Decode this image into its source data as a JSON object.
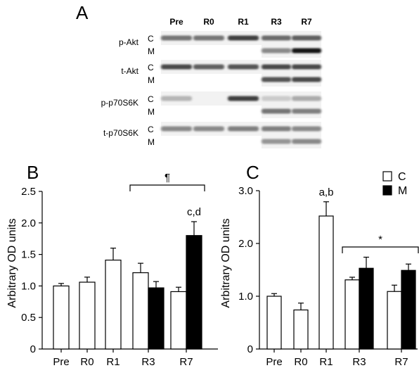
{
  "panels": {
    "a": {
      "letter": "A"
    },
    "b": {
      "letter": "B"
    },
    "c": {
      "letter": "C"
    }
  },
  "blot": {
    "columns": [
      "Pre",
      "R0",
      "R1",
      "R3",
      "R7"
    ],
    "proteins": [
      {
        "name": "p-Akt",
        "rows": [
          "C",
          "M"
        ],
        "bands": {
          "C": [
            0.55,
            0.55,
            0.8,
            0.6,
            0.65
          ],
          "M": [
            null,
            null,
            null,
            0.45,
            1.0
          ]
        }
      },
      {
        "name": "t-Akt",
        "rows": [
          "C",
          "M"
        ],
        "bands": {
          "C": [
            0.75,
            0.65,
            0.7,
            0.75,
            0.75
          ],
          "M": [
            null,
            null,
            null,
            0.7,
            0.75
          ]
        }
      },
      {
        "name": "p-p70S6K",
        "rows": [
          "C",
          "M"
        ],
        "bands": {
          "C": [
            0.25,
            0.0,
            0.8,
            0.15,
            0.3
          ],
          "M": [
            null,
            null,
            null,
            0.55,
            0.5
          ]
        }
      },
      {
        "name": "t-p70S6K",
        "rows": [
          "C",
          "M"
        ],
        "bands": {
          "C": [
            0.45,
            0.45,
            0.5,
            0.5,
            0.45
          ],
          "M": [
            null,
            null,
            null,
            0.4,
            0.45
          ]
        }
      }
    ]
  },
  "legend": {
    "items": [
      {
        "label": "C",
        "color": "#ffffff"
      },
      {
        "label": "M",
        "color": "#000000"
      }
    ],
    "placement": "top-right of panel C"
  },
  "chart_data": [
    {
      "panel": "B",
      "type": "bar",
      "ylabel": "Arbitrary OD units",
      "ylim": [
        0,
        2.5
      ],
      "yticks": [
        "0",
        "0.5",
        "1.0",
        "1.5",
        "2.0",
        "2.5"
      ],
      "categories": [
        "Pre",
        "R0",
        "R1",
        "R3",
        "R7"
      ],
      "series": [
        {
          "name": "C",
          "color": "#ffffff",
          "values": [
            1.0,
            1.06,
            1.41,
            1.21,
            0.91
          ],
          "errors": [
            0.04,
            0.08,
            0.19,
            0.15,
            0.07
          ]
        },
        {
          "name": "M",
          "color": "#000000",
          "values": [
            null,
            null,
            null,
            0.97,
            1.8
          ],
          "errors": [
            null,
            null,
            null,
            0.1,
            0.22
          ]
        }
      ],
      "annotations": [
        {
          "text": "c,d",
          "category": "R7",
          "series": "M"
        },
        {
          "text": "¶",
          "bracket": [
            "R3",
            "R7"
          ]
        }
      ],
      "grid": false
    },
    {
      "panel": "C",
      "type": "bar",
      "ylabel": "Arbitrary OD units",
      "ylim": [
        0,
        3.0
      ],
      "yticks": [
        "0",
        "1.0",
        "2.0",
        "3.0"
      ],
      "categories": [
        "Pre",
        "R0",
        "R1",
        "R3",
        "R7"
      ],
      "series": [
        {
          "name": "C",
          "color": "#ffffff",
          "values": [
            1.0,
            0.74,
            2.52,
            1.31,
            1.09
          ],
          "errors": [
            0.05,
            0.13,
            0.27,
            0.05,
            0.12
          ]
        },
        {
          "name": "M",
          "color": "#000000",
          "values": [
            null,
            null,
            null,
            1.53,
            1.49
          ],
          "errors": [
            null,
            null,
            null,
            0.21,
            0.12
          ]
        }
      ],
      "annotations": [
        {
          "text": "a,b",
          "category": "R1",
          "series": "C"
        },
        {
          "text": "*",
          "bracket": [
            "R3",
            "R7"
          ]
        }
      ],
      "grid": false
    }
  ]
}
